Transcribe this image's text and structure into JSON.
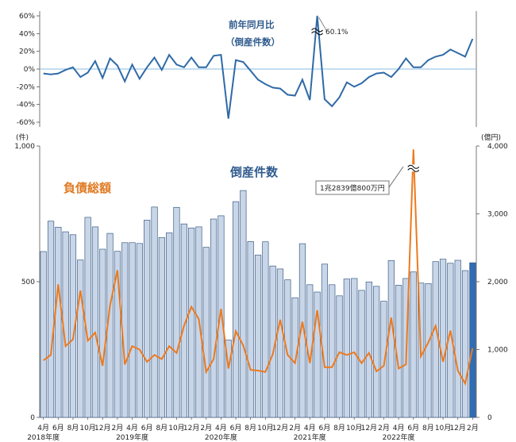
{
  "chart_data": {
    "type": "combo",
    "top_panel": {
      "title_line1": "前年同月比",
      "title_line2": "（倒産件数）",
      "ylim": [
        -60,
        60
      ],
      "yticks": [
        "60%",
        "40%",
        "20%",
        "0%",
        "-20%",
        "-40%",
        "-60%"
      ],
      "peak_annotation": "60.1%",
      "values": [
        -5,
        -6,
        -5,
        -1,
        2,
        -9,
        -4,
        9,
        -10,
        12,
        4,
        -14,
        5,
        -11,
        2,
        13,
        -1,
        16,
        5,
        2,
        13,
        2,
        2,
        15,
        16,
        -56,
        10,
        8,
        -2,
        -12,
        -17,
        -21,
        -22,
        -29,
        -30,
        -12,
        -35,
        60.1,
        -34,
        -42,
        -32,
        -15,
        -20,
        -16,
        -9,
        -5,
        -4,
        -9,
        0,
        12,
        2,
        2,
        10,
        14,
        16,
        22,
        18,
        14,
        34
      ]
    },
    "bottom_panel": {
      "series": [
        {
          "name": "倒産件数",
          "type": "bar",
          "axis": "left",
          "values": [
            611,
            723,
            701,
            684,
            673,
            580,
            737,
            702,
            620,
            678,
            612,
            644,
            644,
            641,
            727,
            775,
            663,
            680,
            774,
            713,
            698,
            702,
            627,
            731,
            743,
            285,
            795,
            836,
            648,
            598,
            647,
            558,
            547,
            507,
            441,
            640,
            489,
            462,
            565,
            489,
            448,
            510,
            512,
            468,
            499,
            483,
            428,
            578,
            487,
            512,
            536,
            495,
            493,
            574,
            583,
            568,
            579,
            541,
            570
          ]
        },
        {
          "name": "負債総額",
          "type": "line",
          "axis": "right",
          "values": [
            840,
            920,
            1960,
            1050,
            1150,
            1870,
            1130,
            1250,
            760,
            1650,
            2170,
            780,
            1050,
            1000,
            820,
            920,
            860,
            1050,
            950,
            1350,
            1630,
            1450,
            670,
            860,
            1600,
            720,
            1270,
            1060,
            700,
            690,
            670,
            930,
            1440,
            920,
            800,
            1410,
            800,
            1580,
            740,
            740,
            960,
            920,
            960,
            800,
            950,
            680,
            760,
            1470,
            720,
            780,
            3950,
            900,
            1100,
            1350,
            820,
            1280,
            690,
            500,
            1020
          ]
        }
      ],
      "left_axis": {
        "unit": "(件)",
        "ylim": [
          0,
          1000
        ],
        "ticks": [
          "0",
          "500",
          "1,000"
        ]
      },
      "right_axis": {
        "unit": "(億円)",
        "ylim": [
          0,
          4000
        ],
        "ticks": [
          "0",
          "1,000",
          "2,000",
          "3,000",
          "4,000"
        ]
      },
      "label_bar": "倒産件数",
      "label_line": "負債総額",
      "peak_annotation": "1兆2839億800万円"
    },
    "x_labels": [
      "4月",
      "6月",
      "8月",
      "10月",
      "12月",
      "2月",
      "4月",
      "6月",
      "8月",
      "10月",
      "12月",
      "2月",
      "4月",
      "6月",
      "8月",
      "10月",
      "12月",
      "2月",
      "4月",
      "6月",
      "8月",
      "10月",
      "12月",
      "2月",
      "4月",
      "6月",
      "8月",
      "10月",
      "12月",
      "2月"
    ],
    "fiscal_years": [
      "2018年度",
      "2019年度",
      "2020年度",
      "2021年度",
      "2022年度"
    ],
    "colors": {
      "bar_fill": "#c9d6e8",
      "bar_stroke": "#3b5d86",
      "bar_last": "#2f6db5",
      "yoy_line": "#2f6aa6",
      "debt_line": "#ec7a1f",
      "zero_line": "#88bde3"
    }
  }
}
